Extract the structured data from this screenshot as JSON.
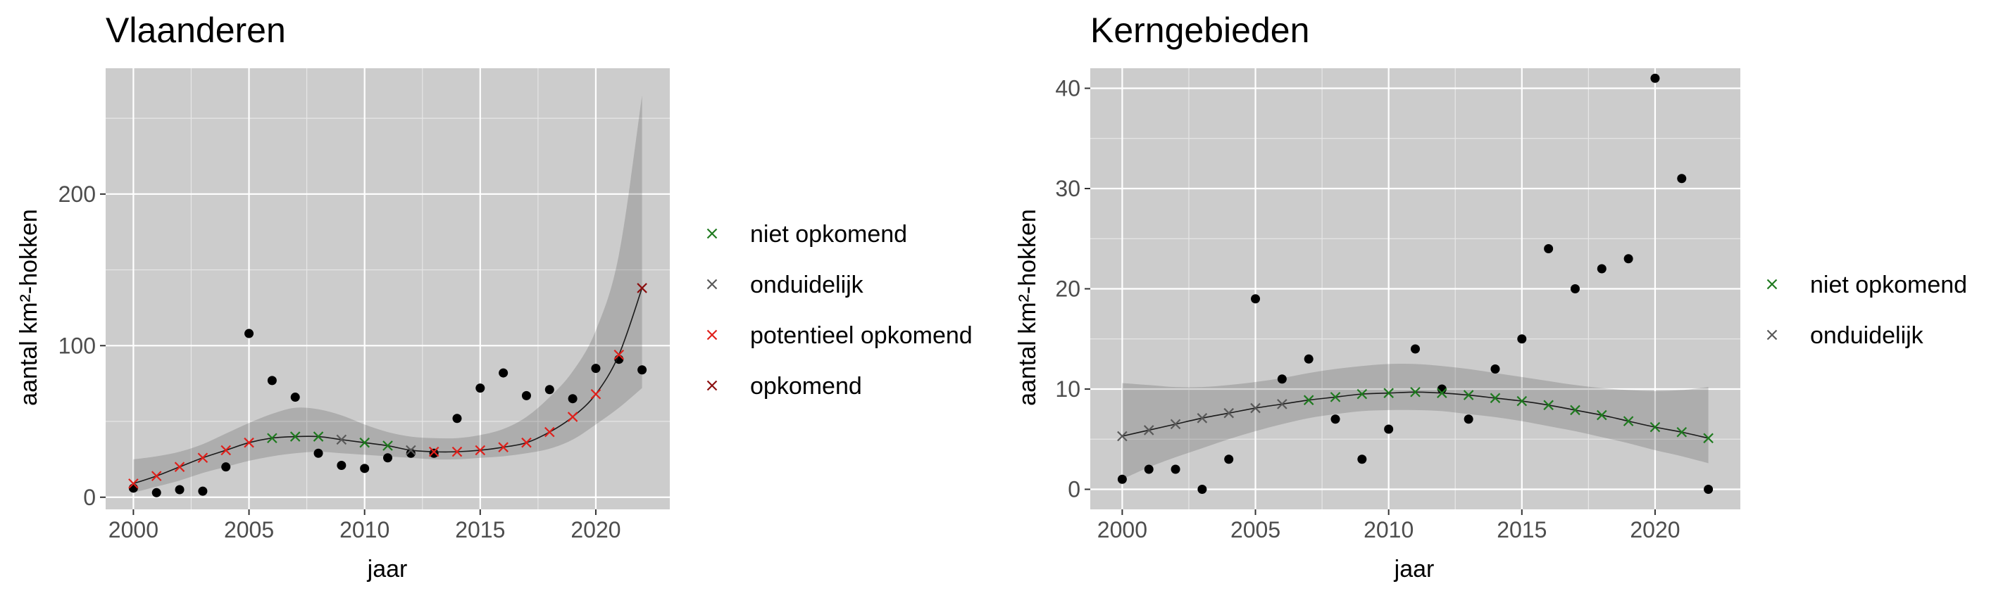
{
  "chart_data": [
    {
      "type": "scatter",
      "title": "Vlaanderen",
      "xlabel": "jaar",
      "ylabel": "aantal km²-hokken",
      "xlim": [
        1998.8,
        2023.2
      ],
      "ylim": [
        -8,
        283
      ],
      "xticks": [
        2000,
        2005,
        2010,
        2015,
        2020
      ],
      "yticks": [
        0,
        100,
        200
      ],
      "grid": true,
      "legend_position": "right",
      "legend": [
        {
          "label": "niet opkomend",
          "color": "#1f7a1f"
        },
        {
          "label": "onduidelijk",
          "color": "#595959"
        },
        {
          "label": "potentieel opkomend",
          "color": "#e0201b"
        },
        {
          "label": "opkomend",
          "color": "#8b0f0f"
        }
      ],
      "observed": {
        "x": [
          2000,
          2001,
          2002,
          2003,
          2004,
          2005,
          2006,
          2007,
          2008,
          2009,
          2010,
          2011,
          2012,
          2013,
          2014,
          2015,
          2016,
          2017,
          2018,
          2019,
          2020,
          2021,
          2022
        ],
        "y": [
          6,
          3,
          5,
          4,
          20,
          108,
          77,
          66,
          29,
          21,
          19,
          26,
          29,
          29,
          52,
          72,
          82,
          67,
          71,
          65,
          85,
          91,
          84
        ]
      },
      "fitted": {
        "x": [
          2000,
          2001,
          2002,
          2003,
          2004,
          2005,
          2006,
          2007,
          2008,
          2009,
          2010,
          2011,
          2012,
          2013,
          2014,
          2015,
          2016,
          2017,
          2018,
          2019,
          2020,
          2021,
          2022
        ],
        "y": [
          9,
          14,
          20,
          26,
          31,
          36,
          39,
          40,
          40,
          38,
          36,
          34,
          31,
          30,
          30,
          31,
          33,
          36,
          43,
          53,
          68,
          94,
          138
        ],
        "status": [
          "potentieel opkomend",
          "potentieel opkomend",
          "potentieel opkomend",
          "potentieel opkomend",
          "potentieel opkomend",
          "potentieel opkomend",
          "niet opkomend",
          "niet opkomend",
          "niet opkomend",
          "onduidelijk",
          "niet opkomend",
          "niet opkomend",
          "onduidelijk",
          "potentieel opkomend",
          "potentieel opkomend",
          "potentieel opkomend",
          "potentieel opkomend",
          "potentieel opkomend",
          "potentieel opkomend",
          "potentieel opkomend",
          "potentieel opkomend",
          "potentieel opkomend",
          "opkomend"
        ],
        "lower": [
          3,
          7,
          11,
          16,
          20,
          24,
          27,
          29,
          30,
          29,
          28,
          27,
          26,
          25,
          25,
          26,
          27,
          29,
          32,
          38,
          48,
          59,
          72
        ],
        "upper": [
          25,
          27,
          30,
          35,
          42,
          49,
          55,
          59,
          58,
          54,
          48,
          43,
          40,
          39,
          39,
          41,
          45,
          53,
          66,
          83,
          110,
          160,
          265
        ]
      }
    },
    {
      "type": "scatter",
      "title": "Kerngebieden",
      "xlabel": "jaar",
      "ylabel": "aantal km²-hokken",
      "xlim": [
        1998.8,
        2023.2
      ],
      "ylim": [
        -2,
        42
      ],
      "xticks": [
        2000,
        2005,
        2010,
        2015,
        2020
      ],
      "yticks": [
        0,
        10,
        20,
        30,
        40
      ],
      "grid": true,
      "legend_position": "right",
      "legend": [
        {
          "label": "niet opkomend",
          "color": "#1f7a1f"
        },
        {
          "label": "onduidelijk",
          "color": "#595959"
        }
      ],
      "observed": {
        "x": [
          2000,
          2001,
          2002,
          2003,
          2004,
          2005,
          2006,
          2007,
          2008,
          2009,
          2010,
          2011,
          2012,
          2013,
          2014,
          2015,
          2016,
          2017,
          2018,
          2019,
          2020,
          2021,
          2022
        ],
        "y": [
          1,
          2,
          2,
          0,
          3,
          19,
          11,
          13,
          7,
          3,
          6,
          14,
          10,
          7,
          12,
          15,
          24,
          20,
          22,
          23,
          41,
          31,
          0
        ]
      },
      "fitted": {
        "x": [
          2000,
          2001,
          2002,
          2003,
          2004,
          2005,
          2006,
          2007,
          2008,
          2009,
          2010,
          2011,
          2012,
          2013,
          2014,
          2015,
          2016,
          2017,
          2018,
          2019,
          2020,
          2021,
          2022
        ],
        "y": [
          5.3,
          5.9,
          6.5,
          7.1,
          7.6,
          8.1,
          8.5,
          8.9,
          9.2,
          9.5,
          9.6,
          9.7,
          9.6,
          9.4,
          9.1,
          8.8,
          8.4,
          7.9,
          7.4,
          6.8,
          6.2,
          5.7,
          5.1
        ],
        "status": [
          "onduidelijk",
          "onduidelijk",
          "onduidelijk",
          "onduidelijk",
          "onduidelijk",
          "onduidelijk",
          "onduidelijk",
          "niet opkomend",
          "niet opkomend",
          "niet opkomend",
          "niet opkomend",
          "niet opkomend",
          "niet opkomend",
          "niet opkomend",
          "niet opkomend",
          "niet opkomend",
          "niet opkomend",
          "niet opkomend",
          "niet opkomend",
          "niet opkomend",
          "niet opkomend",
          "niet opkomend",
          "niet opkomend"
        ],
        "lower": [
          1.0,
          2.2,
          3.2,
          4.1,
          5.0,
          5.8,
          6.5,
          7.1,
          7.5,
          7.8,
          7.9,
          7.9,
          7.8,
          7.5,
          7.2,
          6.8,
          6.3,
          5.8,
          5.2,
          4.6,
          3.9,
          3.3,
          2.6
        ],
        "upper": [
          10.6,
          10.4,
          10.2,
          10.2,
          10.4,
          10.7,
          11.1,
          11.6,
          12.0,
          12.3,
          12.5,
          12.5,
          12.3,
          12.0,
          11.6,
          11.2,
          10.8,
          10.4,
          10.1,
          9.9,
          9.8,
          9.9,
          10.2
        ]
      }
    }
  ]
}
